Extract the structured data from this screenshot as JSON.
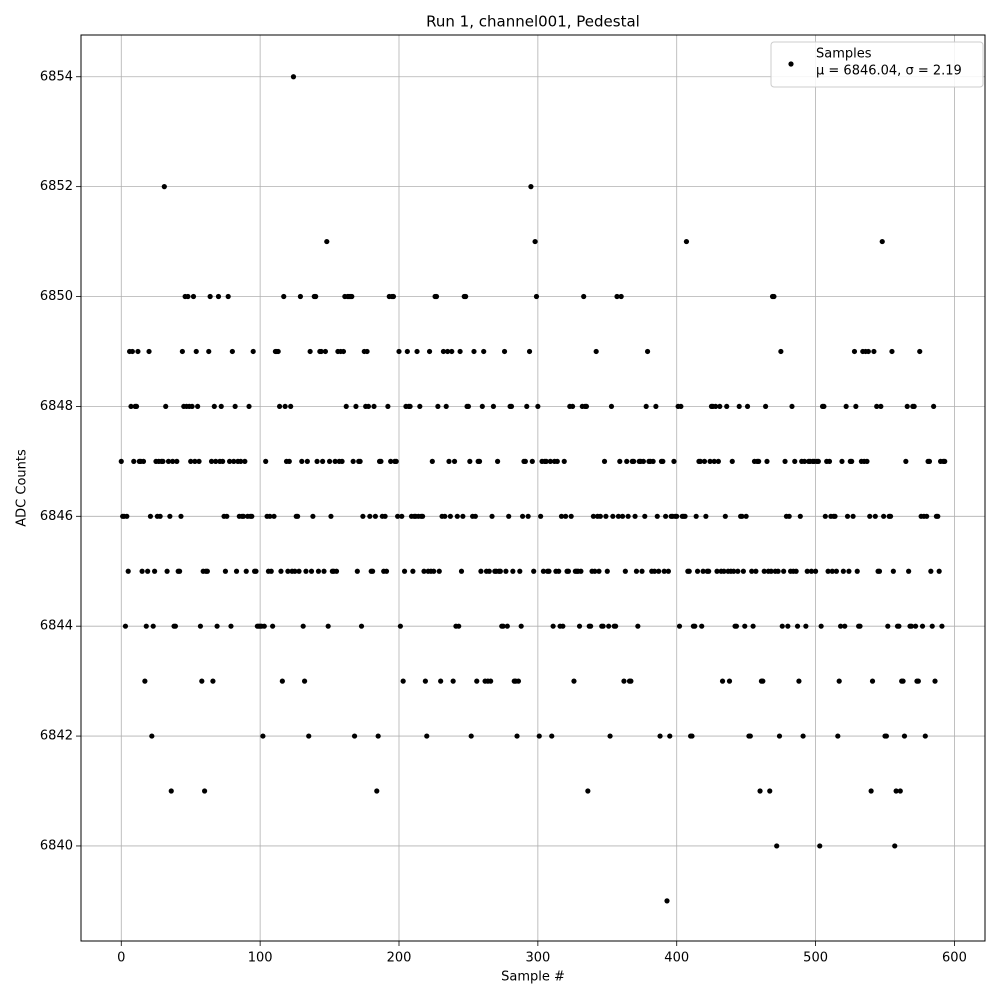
{
  "chart_data": {
    "type": "scatter",
    "title": "Run 1, channel001, Pedestal",
    "x_label": "Sample #",
    "y_label": "ADC Counts",
    "xlim": [
      -29,
      622
    ],
    "ylim": [
      6838.27,
      6854.76
    ],
    "xticks": [
      0,
      100,
      200,
      300,
      400,
      500,
      600
    ],
    "yticks": [
      6840,
      6842,
      6844,
      6846,
      6848,
      6850,
      6852,
      6854
    ],
    "grid": true,
    "legend": "upper right",
    "series": [
      {
        "name": "Samples",
        "stats": "μ = 6846.04, σ = 2.19",
        "color": "#000000",
        "x": [
          0,
          1,
          2,
          3,
          4,
          5,
          6,
          7,
          8,
          9,
          10,
          11,
          12,
          13,
          14,
          15,
          16,
          17,
          18,
          19,
          20,
          21,
          22,
          23,
          24,
          25,
          26,
          27,
          28,
          29,
          30,
          31,
          32,
          33,
          34,
          35,
          36,
          37,
          38,
          39,
          40,
          41,
          42,
          43,
          44,
          45,
          46,
          47,
          48,
          49,
          50,
          51,
          52,
          53,
          54,
          55,
          56,
          57,
          58,
          59,
          60,
          61,
          62,
          63,
          64,
          65,
          66,
          67,
          68,
          69,
          70,
          71,
          72,
          73,
          74,
          75,
          76,
          77,
          78,
          79,
          80,
          81,
          82,
          83,
          84,
          85,
          86,
          87,
          88,
          89,
          90,
          91,
          92,
          93,
          94,
          95,
          96,
          97,
          98,
          99,
          100,
          101,
          102,
          103,
          104,
          105,
          106,
          107,
          108,
          109,
          110,
          111,
          112,
          113,
          114,
          115,
          116,
          117,
          118,
          119,
          120,
          121,
          122,
          123,
          124,
          125,
          126,
          127,
          128,
          129,
          130,
          131,
          132,
          133,
          134,
          135,
          136,
          137,
          138,
          139,
          140,
          141,
          142,
          143,
          144,
          145,
          146,
          147,
          148,
          149,
          150,
          151,
          152,
          153,
          154,
          155,
          156,
          157,
          158,
          159,
          160,
          161,
          162,
          163,
          164,
          165,
          166,
          167,
          168,
          169,
          170,
          171,
          172,
          173,
          174,
          175,
          176,
          177,
          178,
          179,
          180,
          181,
          182,
          183,
          184,
          185,
          186,
          187,
          188,
          189,
          190,
          191,
          192,
          193,
          194,
          195,
          196,
          197,
          198,
          199,
          200,
          201,
          202,
          203,
          204,
          205,
          206,
          207,
          208,
          209,
          210,
          211,
          212,
          213,
          214,
          215,
          216,
          217,
          218,
          219,
          220,
          221,
          222,
          223,
          224,
          225,
          226,
          227,
          228,
          229,
          230,
          231,
          232,
          233,
          234,
          235,
          236,
          237,
          238,
          239,
          240,
          241,
          242,
          243,
          244,
          245,
          246,
          247,
          248,
          249,
          250,
          251,
          252,
          253,
          254,
          255,
          256,
          257,
          258,
          259,
          260,
          261,
          262,
          263,
          264,
          265,
          266,
          267,
          268,
          269,
          270,
          271,
          272,
          273,
          274,
          275,
          276,
          277,
          278,
          279,
          280,
          281,
          282,
          283,
          284,
          285,
          286,
          287,
          288,
          289,
          290,
          291,
          292,
          293,
          294,
          295,
          296,
          297,
          298,
          299,
          300,
          301,
          302,
          303,
          304,
          305,
          306,
          307,
          308,
          309,
          310,
          311,
          312,
          313,
          314,
          315,
          316,
          317,
          318,
          319,
          320,
          321,
          322,
          323,
          324,
          325,
          326,
          327,
          328,
          329,
          330,
          331,
          332,
          333,
          334,
          335,
          336,
          337,
          338,
          339,
          340,
          341,
          342,
          343,
          344,
          345,
          346,
          347,
          348,
          349,
          350,
          351,
          352,
          353,
          354,
          355,
          356,
          357,
          358,
          359,
          360,
          361,
          362,
          363,
          364,
          365,
          366,
          367,
          368,
          369,
          370,
          371,
          372,
          373,
          374,
          375,
          376,
          377,
          378,
          379,
          380,
          381,
          382,
          383,
          384,
          385,
          386,
          387,
          388,
          389,
          390,
          391,
          392,
          393,
          394,
          395,
          396,
          397,
          398,
          399,
          400,
          401,
          402,
          403,
          404,
          405,
          406,
          407,
          408,
          409,
          410,
          411,
          412,
          413,
          414,
          415,
          416,
          417,
          418,
          419,
          420,
          421,
          422,
          423,
          424,
          425,
          426,
          427,
          428,
          429,
          430,
          431,
          432,
          433,
          434,
          435,
          436,
          437,
          438,
          439,
          440,
          441,
          442,
          443,
          444,
          445,
          446,
          447,
          448,
          449,
          450,
          451,
          452,
          453,
          454,
          455,
          456,
          457,
          458,
          459,
          460,
          461,
          462,
          463,
          464,
          465,
          466,
          467,
          468,
          469,
          470,
          471,
          472,
          473,
          474,
          475,
          476,
          477,
          478,
          479,
          480,
          481,
          482,
          483,
          484,
          485,
          486,
          487,
          488,
          489,
          490,
          491,
          492,
          493,
          494,
          495,
          496,
          497,
          498,
          499,
          500,
          501,
          502,
          503,
          504,
          505,
          506,
          507,
          508,
          509,
          510,
          511,
          512,
          513,
          514,
          515,
          516,
          517,
          518,
          519,
          520,
          521,
          522,
          523,
          524,
          525,
          526,
          527,
          528,
          529,
          530,
          531,
          532,
          533,
          534,
          535,
          536,
          537,
          538,
          539,
          540,
          541,
          542,
          543,
          544,
          545,
          546,
          547,
          548,
          549,
          550,
          551,
          552,
          553,
          554,
          555,
          556,
          557,
          558,
          559,
          560,
          561,
          562,
          563,
          564,
          565,
          566,
          567,
          568,
          569,
          570,
          571,
          572,
          573,
          574,
          575,
          576,
          577,
          578,
          579,
          580,
          581,
          582,
          583,
          584,
          585,
          586,
          587,
          588,
          589,
          590,
          591,
          592,
          593
        ],
        "values": [
          6847,
          6846,
          6846,
          6844,
          6846,
          6845,
          6849,
          6848,
          6849,
          6847,
          6848,
          6848,
          6849,
          6847,
          6847,
          6845,
          6847,
          6843,
          6844,
          6845,
          6849,
          6846,
          6842,
          6844,
          6845,
          6847,
          6846,
          6847,
          6846,
          6847,
          6847,
          6852,
          6848,
          6845,
          6847,
          6846,
          6841,
          6847,
          6844,
          6844,
          6847,
          6845,
          6845,
          6846,
          6849,
          6848,
          6850,
          6848,
          6850,
          6848,
          6847,
          6848,
          6850,
          6847,
          6849,
          6848,
          6847,
          6844,
          6843,
          6845,
          6841,
          6845,
          6845,
          6849,
          6850,
          6847,
          6843,
          6848,
          6847,
          6844,
          6850,
          6847,
          6848,
          6847,
          6846,
          6845,
          6846,
          6850,
          6847,
          6844,
          6849,
          6847,
          6848,
          6845,
          6847,
          6846,
          6847,
          6846,
          6846,
          6847,
          6845,
          6846,
          6848,
          6846,
          6846,
          6849,
          6845,
          6845,
          6844,
          6844,
          6844,
          6844,
          6842,
          6844,
          6847,
          6846,
          6845,
          6846,
          6845,
          6844,
          6846,
          6849,
          6849,
          6849,
          6848,
          6845,
          6843,
          6850,
          6848,
          6847,
          6845,
          6847,
          6848,
          6845,
          6854,
          6845,
          6846,
          6846,
          6845,
          6850,
          6847,
          6844,
          6843,
          6845,
          6847,
          6842,
          6849,
          6845,
          6846,
          6850,
          6850,
          6847,
          6845,
          6849,
          6849,
          6847,
          6845,
          6849,
          6851,
          6844,
          6847,
          6846,
          6845,
          6845,
          6847,
          6845,
          6849,
          6847,
          6849,
          6847,
          6849,
          6850,
          6848,
          6850,
          6850,
          6850,
          6850,
          6847,
          6842,
          6848,
          6845,
          6847,
          6847,
          6844,
          6846,
          6849,
          6848,
          6849,
          6848,
          6846,
          6845,
          6845,
          6848,
          6846,
          6841,
          6842,
          6847,
          6847,
          6846,
          6845,
          6846,
          6845,
          6848,
          6850,
          6847,
          6850,
          6850,
          6847,
          6847,
          6846,
          6849,
          6844,
          6846,
          6843,
          6845,
          6848,
          6849,
          6848,
          6848,
          6846,
          6845,
          6846,
          6846,
          6849,
          6846,
          6848,
          6846,
          6846,
          6845,
          6843,
          6842,
          6845,
          6849,
          6845,
          6847,
          6845,
          6850,
          6850,
          6848,
          6845,
          6843,
          6846,
          6849,
          6846,
          6848,
          6849,
          6847,
          6846,
          6849,
          6843,
          6847,
          6844,
          6846,
          6844,
          6849,
          6845,
          6846,
          6850,
          6850,
          6848,
          6848,
          6847,
          6842,
          6846,
          6849,
          6846,
          6843,
          6847,
          6847,
          6845,
          6848,
          6849,
          6843,
          6845,
          6843,
          6845,
          6843,
          6846,
          6848,
          6845,
          6845,
          6847,
          6845,
          6845,
          6844,
          6844,
          6849,
          6845,
          6844,
          6846,
          6848,
          6848,
          6845,
          6843,
          6843,
          6842,
          6843,
          6845,
          6844,
          6846,
          6847,
          6847,
          6848,
          6846,
          6849,
          6852,
          6847,
          6845,
          6851,
          6850,
          6848,
          6842,
          6846,
          6847,
          6845,
          6847,
          6847,
          6845,
          6845,
          6847,
          6842,
          6844,
          6847,
          6845,
          6847,
          6845,
          6844,
          6846,
          6844,
          6847,
          6846,
          6845,
          6845,
          6848,
          6846,
          6848,
          6843,
          6845,
          6845,
          6845,
          6844,
          6845,
          6848,
          6850,
          6848,
          6848,
          6841,
          6844,
          6844,
          6845,
          6846,
          6845,
          6849,
          6846,
          6845,
          6846,
          6844,
          6844,
          6847,
          6846,
          6845,
          6844,
          6842,
          6848,
          6846,
          6844,
          6844,
          6850,
          6846,
          6847,
          6850,
          6846,
          6843,
          6845,
          6847,
          6846,
          6843,
          6843,
          6847,
          6847,
          6846,
          6845,
          6844,
          6847,
          6847,
          6845,
          6847,
          6846,
          6848,
          6849,
          6847,
          6847,
          6845,
          6847,
          6845,
          6848,
          6846,
          6845,
          6842,
          6847,
          6847,
          6845,
          6846,
          6839,
          6845,
          6842,
          6846,
          6846,
          6847,
          6846,
          6846,
          6848,
          6844,
          6848,
          6846,
          6846,
          6846,
          6851,
          6845,
          6845,
          6842,
          6842,
          6844,
          6844,
          6846,
          6845,
          6847,
          6847,
          6844,
          6845,
          6847,
          6846,
          6845,
          6845,
          6847,
          6848,
          6848,
          6847,
          6848,
          6845,
          6847,
          6848,
          6845,
          6843,
          6845,
          6846,
          6848,
          6845,
          6843,
          6845,
          6847,
          6845,
          6844,
          6844,
          6845,
          6848,
          6846,
          6846,
          6845,
          6844,
          6846,
          6848,
          6842,
          6842,
          6845,
          6844,
          6847,
          6845,
          6847,
          6847,
          6841,
          6843,
          6843,
          6845,
          6848,
          6847,
          6845,
          6841,
          6845,
          6850,
          6850,
          6845,
          6840,
          6845,
          6842,
          6849,
          6844,
          6845,
          6847,
          6846,
          6844,
          6846,
          6845,
          6848,
          6845,
          6847,
          6845,
          6844,
          6843,
          6846,
          6847,
          6842,
          6847,
          6844,
          6845,
          6847,
          6847,
          6845,
          6847,
          6847,
          6845,
          6847,
          6847,
          6840,
          6844,
          6848,
          6848,
          6846,
          6847,
          6845,
          6847,
          6846,
          6845,
          6846,
          6846,
          6845,
          6842,
          6843,
          6844,
          6847,
          6845,
          6844,
          6848,
          6846,
          6845,
          6847,
          6847,
          6846,
          6849,
          6848,
          6845,
          6844,
          6844,
          6847,
          6849,
          6847,
          6849,
          6847,
          6849,
          6846,
          6841,
          6843,
          6849,
          6846,
          6848,
          6845,
          6845,
          6848,
          6851,
          6846,
          6842,
          6842,
          6844,
          6846,
          6846,
          6849,
          6845,
          6840,
          6841,
          6844,
          6844,
          6841,
          6843,
          6843,
          6842,
          6847,
          6848,
          6845,
          6844,
          6844,
          6848,
          6848,
          6844,
          6843,
          6843,
          6849,
          6846,
          6844,
          6846,
          6842,
          6846,
          6847,
          6847,
          6845,
          6844,
          6848,
          6843,
          6846,
          6846,
          6845,
          6847,
          6844,
          6847,
          6847
        ]
      }
    ]
  }
}
